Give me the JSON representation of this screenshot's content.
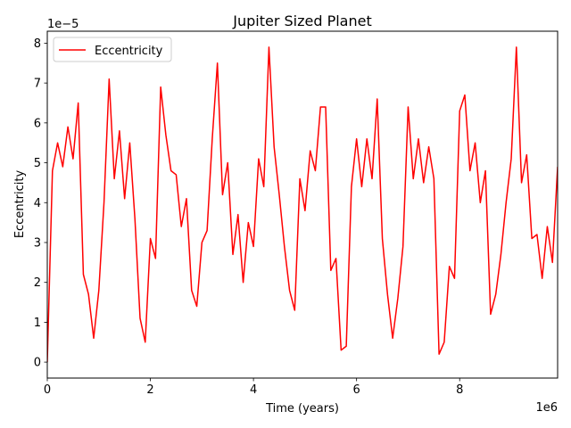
{
  "chart_data": {
    "type": "line",
    "title": "Jupiter Sized Planet",
    "xlabel": "Time (years)",
    "ylabel": "Eccentricity",
    "x_offset_text": "1e6",
    "y_offset_text": "1e−5",
    "xlim": [
      0,
      9900000
    ],
    "ylim": [
      -4e-06,
      8.3e-05
    ],
    "x_ticks": [
      0,
      2000000,
      4000000,
      6000000,
      8000000
    ],
    "x_tick_labels": [
      "0",
      "2",
      "4",
      "6",
      "8"
    ],
    "y_ticks": [
      0,
      1e-05,
      2e-05,
      3e-05,
      4e-05,
      5e-05,
      6e-05,
      7e-05,
      8e-05
    ],
    "y_tick_labels": [
      "0",
      "1",
      "2",
      "3",
      "4",
      "5",
      "6",
      "7",
      "8"
    ],
    "grid": false,
    "legend": "upper-left",
    "series": [
      {
        "name": "Eccentricity",
        "color": "#ff0000",
        "x": [
          0,
          100000,
          200000,
          300000,
          400000,
          500000,
          600000,
          700000,
          800000,
          900000,
          1000000,
          1100000,
          1200000,
          1300000,
          1400000,
          1500000,
          1600000,
          1700000,
          1800000,
          1900000,
          2000000,
          2100000,
          2200000,
          2300000,
          2400000,
          2500000,
          2600000,
          2700000,
          2800000,
          2900000,
          3000000,
          3100000,
          3200000,
          3300000,
          3400000,
          3500000,
          3600000,
          3700000,
          3800000,
          3900000,
          4000000,
          4100000,
          4200000,
          4300000,
          4400000,
          4500000,
          4600000,
          4700000,
          4800000,
          4900000,
          5000000,
          5100000,
          5200000,
          5300000,
          5400000,
          5500000,
          5600000,
          5700000,
          5800000,
          5900000,
          6000000,
          6100000,
          6200000,
          6300000,
          6400000,
          6500000,
          6600000,
          6700000,
          6800000,
          6900000,
          7000000,
          7100000,
          7200000,
          7300000,
          7400000,
          7500000,
          7600000,
          7700000,
          7800000,
          7900000,
          8000000,
          8100000,
          8200000,
          8300000,
          8400000,
          8500000,
          8600000,
          8700000,
          8800000,
          8900000,
          9000000,
          9100000,
          9200000,
          9300000,
          9400000,
          9500000,
          9600000,
          9700000,
          9800000,
          9900000
        ],
        "y": [
          0.0,
          4.8e-05,
          5.5e-05,
          4.9e-05,
          5.9e-05,
          5.1e-05,
          6.5e-05,
          2.2e-05,
          1.7e-05,
          6e-06,
          1.8e-05,
          4e-05,
          7.1e-05,
          4.6e-05,
          5.8e-05,
          4.1e-05,
          5.5e-05,
          3.6e-05,
          1.1e-05,
          5e-06,
          3.1e-05,
          2.6e-05,
          6.9e-05,
          5.7e-05,
          4.8e-05,
          4.7e-05,
          3.4e-05,
          4.1e-05,
          1.8e-05,
          1.4e-05,
          3e-05,
          3.3e-05,
          5.6e-05,
          7.5e-05,
          4.2e-05,
          5e-05,
          2.7e-05,
          3.7e-05,
          2e-05,
          3.5e-05,
          2.9e-05,
          5.1e-05,
          4.4e-05,
          7.9e-05,
          5.4e-05,
          4.2e-05,
          2.9e-05,
          1.8e-05,
          1.3e-05,
          4.6e-05,
          3.8e-05,
          5.3e-05,
          4.8e-05,
          6.4e-05,
          6.4e-05,
          2.3e-05,
          2.6e-05,
          3e-06,
          4e-06,
          4.4e-05,
          5.6e-05,
          4.4e-05,
          5.6e-05,
          4.6e-05,
          6.6e-05,
          3.1e-05,
          1.7e-05,
          6e-06,
          1.6e-05,
          2.9e-05,
          6.4e-05,
          4.6e-05,
          5.6e-05,
          4.5e-05,
          5.4e-05,
          4.6e-05,
          2e-06,
          5e-06,
          2.4e-05,
          2.1e-05,
          6.3e-05,
          6.7e-05,
          4.8e-05,
          5.5e-05,
          4e-05,
          4.8e-05,
          1.2e-05,
          1.7e-05,
          2.7e-05,
          4e-05,
          5.1e-05,
          7.9e-05,
          4.5e-05,
          5.2e-05,
          3.1e-05,
          3.2e-05,
          2.1e-05,
          3.4e-05,
          2.5e-05,
          4.9e-05
        ]
      }
    ]
  }
}
